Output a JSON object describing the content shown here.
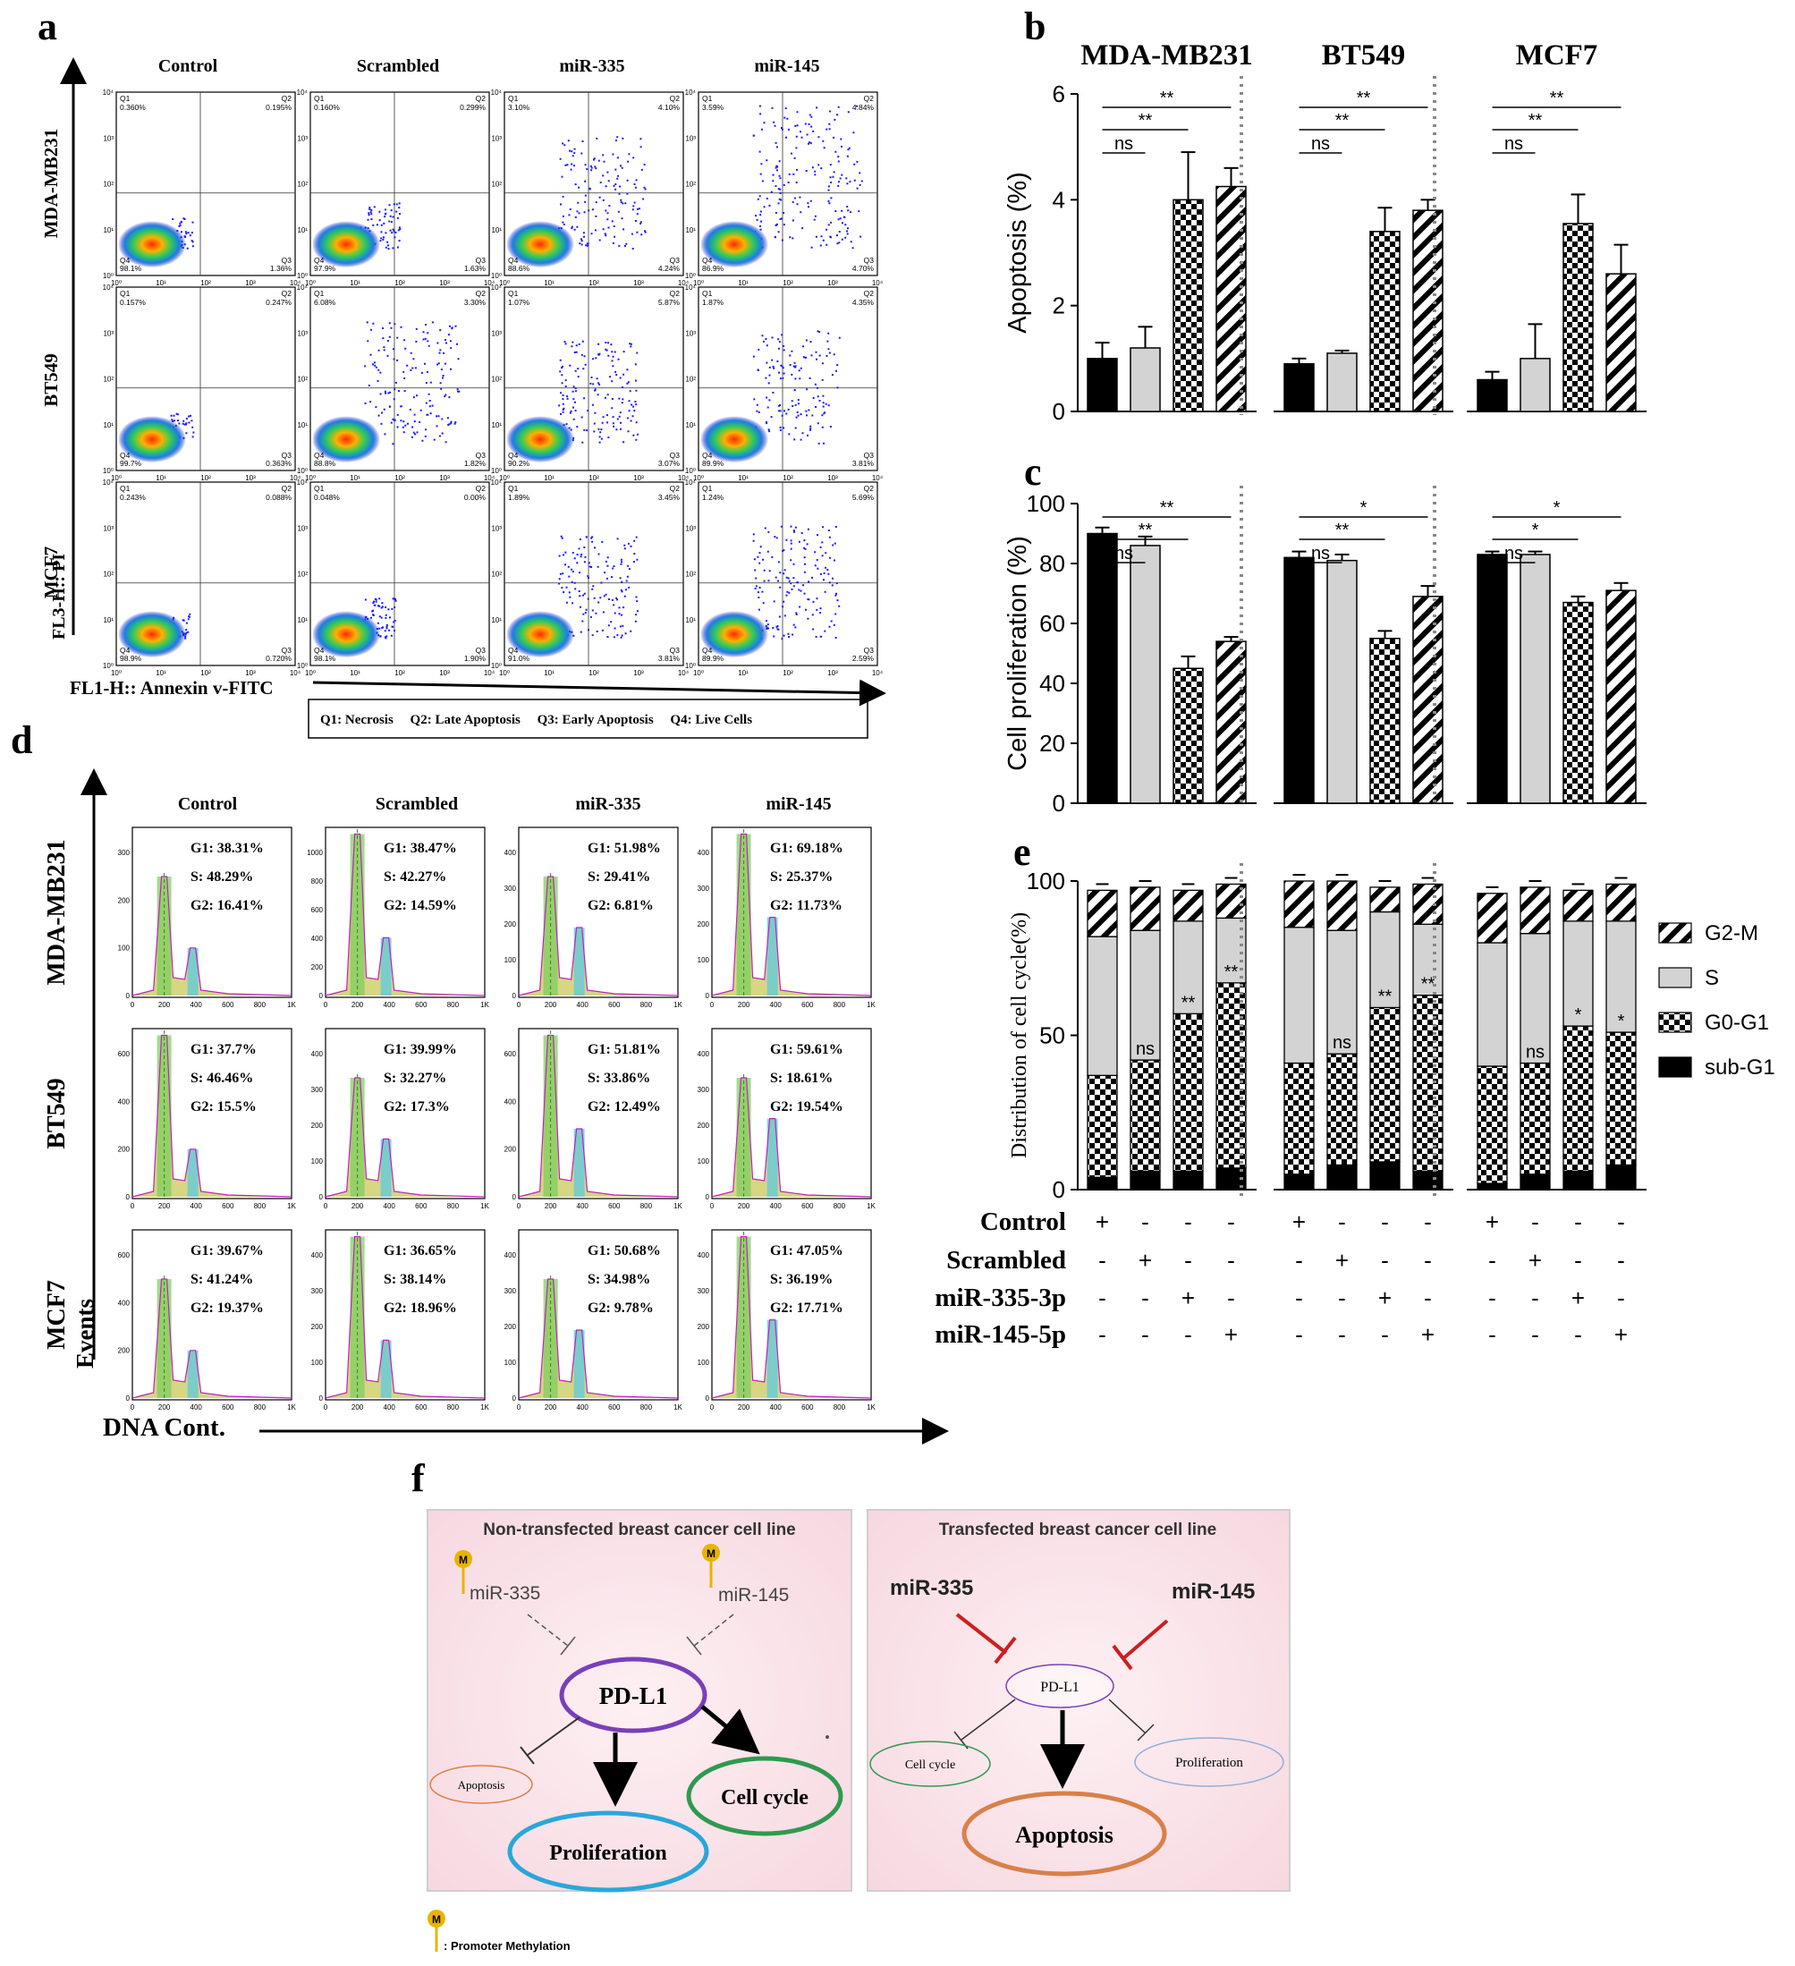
{
  "panel_letters": {
    "a": "a",
    "b": "b",
    "c": "c",
    "d": "d",
    "e": "e",
    "f": "f"
  },
  "conditions": [
    "Control",
    "Scrambled",
    "miR-335",
    "miR-145"
  ],
  "cell_lines": [
    "MDA-MB231",
    "BT549",
    "MCF7"
  ],
  "panel_a": {
    "x_axis_label": "FL1-H:: Annexin v-FITC",
    "y_axis_label": "FL3-H:: PI",
    "legend": "Q1: Necrosis     Q2: Late Apoptosis     Q3: Early Apoptosis     Q4: Live Cells",
    "quadrant_labels": {
      "q1": "Q1",
      "q2": "Q2",
      "q3": "Q3",
      "q4": "Q4"
    },
    "tick_labels": [
      "10⁰",
      "10¹",
      "10²",
      "10³",
      "10⁴"
    ],
    "plots": [
      [
        {
          "q1": "0.360%",
          "q2": "0.195%",
          "q3": "1.36%",
          "q4": "98.1%"
        },
        {
          "q1": "0.160%",
          "q2": "0.299%",
          "q3": "1.63%",
          "q4": "97.9%"
        },
        {
          "q1": "3.10%",
          "q2": "4.10%",
          "q3": "4.24%",
          "q4": "88.6%"
        },
        {
          "q1": "3.59%",
          "q2": "4.84%",
          "q3": "4.70%",
          "q4": "86.9%"
        }
      ],
      [
        {
          "q1": "0.157%",
          "q2": "0.247%",
          "q3": "0.363%",
          "q4": "99.7%"
        },
        {
          "q1": "6.08%",
          "q2": "3.30%",
          "q3": "1.82%",
          "q4": "88.8%"
        },
        {
          "q1": "1.07%",
          "q2": "5.87%",
          "q3": "3.07%",
          "q4": "90.2%"
        },
        {
          "q1": "1.87%",
          "q2": "4.35%",
          "q3": "3.81%",
          "q4": "89.9%"
        }
      ],
      [
        {
          "q1": "0.243%",
          "q2": "0.088%",
          "q3": "0.720%",
          "q4": "98.9%"
        },
        {
          "q1": "0.048%",
          "q2": "0.00%",
          "q3": "1.90%",
          "q4": "98.1%"
        },
        {
          "q1": "1.89%",
          "q2": "3.45%",
          "q3": "3.81%",
          "q4": "91.0%"
        },
        {
          "q1": "1.24%",
          "q2": "5.69%",
          "q3": "2.59%",
          "q4": "89.9%"
        }
      ]
    ]
  },
  "panel_d": {
    "x_axis_label": "DNA Cont.",
    "y_axis_label": "Events",
    "x_ticks": [
      "0",
      "200",
      "400",
      "600",
      "800",
      "1K"
    ],
    "plots": [
      [
        {
          "g1": "G1: 38.31%",
          "s": "S: 48.29%",
          "g2": "G2: 16.41%",
          "yticks": [
            "0",
            "100",
            "200",
            "300"
          ]
        },
        {
          "g1": "G1: 38.47%",
          "s": "S: 42.27%",
          "g2": "G2: 14.59%",
          "yticks": [
            "0",
            "200",
            "400",
            "600",
            "800",
            "1000"
          ]
        },
        {
          "g1": "G1: 51.98%",
          "s": "S: 29.41%",
          "g2": "G2: 6.81%",
          "yticks": [
            "0",
            "100",
            "200",
            "300",
            "400"
          ]
        },
        {
          "g1": "G1: 69.18%",
          "s": "S: 25.37%",
          "g2": "G2: 11.73%",
          "yticks": [
            "0",
            "100",
            "200",
            "300",
            "400"
          ]
        }
      ],
      [
        {
          "g1": "G1: 37.7%",
          "s": "S: 46.46%",
          "g2": "G2: 15.5%",
          "yticks": [
            "0",
            "200",
            "400",
            "600"
          ]
        },
        {
          "g1": "G1: 39.99%",
          "s": "S: 32.27%",
          "g2": "G2: 17.3%",
          "yticks": [
            "0",
            "100",
            "200",
            "300",
            "400"
          ]
        },
        {
          "g1": "G1: 51.81%",
          "s": "S: 33.86%",
          "g2": "G2: 12.49%",
          "yticks": [
            "0",
            "200",
            "400",
            "600"
          ]
        },
        {
          "g1": "G1: 59.61%",
          "s": "S: 18.61%",
          "g2": "G2: 19.54%",
          "yticks": [
            "0",
            "100",
            "200",
            "300",
            "400"
          ]
        }
      ],
      [
        {
          "g1": "G1: 39.67%",
          "s": "S: 41.24%",
          "g2": "G2: 19.37%",
          "yticks": [
            "0",
            "200",
            "400",
            "600"
          ]
        },
        {
          "g1": "G1: 36.65%",
          "s": "S: 38.14%",
          "g2": "G2: 18.96%",
          "yticks": [
            "0",
            "100",
            "200",
            "300",
            "400"
          ]
        },
        {
          "g1": "G1: 50.68%",
          "s": "S: 34.98%",
          "g2": "G2: 9.78%",
          "yticks": [
            "0",
            "100",
            "200",
            "300",
            "400"
          ]
        },
        {
          "g1": "G1: 47.05%",
          "s": "S: 36.19%",
          "g2": "G2: 17.71%",
          "yticks": [
            "0",
            "100",
            "200",
            "300",
            "400"
          ]
        }
      ]
    ]
  },
  "chart_data": [
    {
      "type": "bar",
      "panel": "b",
      "ylabel": "Apoptosis (%)",
      "ylim": [
        0,
        6
      ],
      "yticks": [
        0,
        2,
        4,
        6
      ],
      "groups": [
        {
          "name": "MDA-MB231",
          "values": [
            1.0,
            1.2,
            4.0,
            4.25
          ],
          "errors": [
            0.3,
            0.4,
            0.9,
            0.35
          ],
          "sig": [
            {
              "to": 1,
              "label": "ns"
            },
            {
              "to": 2,
              "label": "**"
            },
            {
              "to": 3,
              "label": "**"
            }
          ]
        },
        {
          "name": "BT549",
          "values": [
            0.9,
            1.1,
            3.4,
            3.8
          ],
          "errors": [
            0.1,
            0.05,
            0.45,
            0.2
          ],
          "sig": [
            {
              "to": 1,
              "label": "ns"
            },
            {
              "to": 2,
              "label": "**"
            },
            {
              "to": 3,
              "label": "**"
            }
          ]
        },
        {
          "name": "MCF7",
          "values": [
            0.6,
            1.0,
            3.55,
            2.6
          ],
          "errors": [
            0.15,
            0.65,
            0.55,
            0.55
          ],
          "sig": [
            {
              "to": 1,
              "label": "ns"
            },
            {
              "to": 2,
              "label": "**"
            },
            {
              "to": 3,
              "label": "**"
            }
          ]
        }
      ]
    },
    {
      "type": "bar",
      "panel": "c",
      "ylabel": "Cell proliferation (%)",
      "ylim": [
        0,
        100
      ],
      "yticks": [
        0,
        20,
        40,
        60,
        80,
        100
      ],
      "groups": [
        {
          "name": "MDA-MB231",
          "values": [
            90,
            86,
            45,
            54
          ],
          "errors": [
            2,
            3,
            4,
            1.5
          ],
          "sig": [
            {
              "to": 1,
              "label": "ns"
            },
            {
              "to": 2,
              "label": "**"
            },
            {
              "to": 3,
              "label": "**"
            }
          ]
        },
        {
          "name": "BT549",
          "values": [
            82,
            81,
            55,
            69
          ],
          "errors": [
            2,
            2,
            2.5,
            3.5
          ],
          "sig": [
            {
              "to": 1,
              "label": "ns"
            },
            {
              "to": 2,
              "label": "**"
            },
            {
              "to": 3,
              "label": "*"
            }
          ]
        },
        {
          "name": "MCF7",
          "values": [
            83,
            83,
            67,
            71
          ],
          "errors": [
            1,
            1,
            2,
            2.5
          ],
          "sig": [
            {
              "to": 1,
              "label": "ns"
            },
            {
              "to": 2,
              "label": "*"
            },
            {
              "to": 3,
              "label": "*"
            }
          ]
        }
      ]
    },
    {
      "type": "stacked-bar",
      "panel": "e",
      "ylabel": "Distribution of cell cycle(%)",
      "ylim": [
        0,
        100
      ],
      "yticks": [
        0,
        50,
        100
      ],
      "series": [
        "sub-G1",
        "G0-G1",
        "S",
        "G2-M"
      ],
      "legend": [
        "G2-M",
        "S",
        "G0-G1",
        "sub-G1"
      ],
      "groups": [
        {
          "name": "MDA-MB231",
          "bars": [
            [
              4,
              33,
              45,
              15
            ],
            [
              6,
              36,
              42,
              14
            ],
            [
              6,
              51,
              30,
              10
            ],
            [
              7,
              60,
              21,
              11
            ]
          ],
          "labels": [
            "",
            "ns",
            "**",
            "**"
          ]
        },
        {
          "name": "BT549",
          "bars": [
            [
              5,
              36,
              44,
              15
            ],
            [
              8,
              36,
              40,
              16
            ],
            [
              9,
              50,
              31,
              8
            ],
            [
              6,
              57,
              23,
              13
            ]
          ],
          "labels": [
            "",
            "ns",
            "**",
            "**"
          ]
        },
        {
          "name": "MCF7",
          "bars": [
            [
              2,
              38,
              40,
              16
            ],
            [
              5,
              36,
              42,
              15
            ],
            [
              6,
              47,
              34,
              10
            ],
            [
              8,
              43,
              36,
              12
            ]
          ],
          "labels": [
            "",
            "ns",
            "*",
            "*"
          ]
        }
      ],
      "treatment_rows": [
        {
          "label": "Control",
          "signs": [
            "+",
            "-",
            "-",
            "-"
          ]
        },
        {
          "label": "Scrambled",
          "signs": [
            "-",
            "+",
            "-",
            "-"
          ]
        },
        {
          "label": "miR-335-3p",
          "signs": [
            "-",
            "-",
            "+",
            "-"
          ]
        },
        {
          "label": "miR-145-5p",
          "signs": [
            "-",
            "-",
            "-",
            "+"
          ]
        }
      ]
    }
  ],
  "panel_f": {
    "left_title": "Non-transfected breast cancer cell line",
    "right_title": "Transfected breast cancer cell line",
    "mir335": "miR-335",
    "mir145": "miR-145",
    "pdl1": "PD-L1",
    "apoptosis": "Apoptosis",
    "proliferation": "Proliferation",
    "cell_cycle": "Cell cycle",
    "methyl_symbol": "M",
    "methyl_legend": ": Promoter Methylation"
  },
  "colors": {
    "black_bar": "#000000",
    "grey_bar": "#d3d3d3",
    "panel_f_bg": "#f9e1e7",
    "purple": "#7a3fb8",
    "blue": "#2aa7d8",
    "green": "#2e9a4e",
    "orange": "#d9804a",
    "red": "#cc1f1f"
  }
}
